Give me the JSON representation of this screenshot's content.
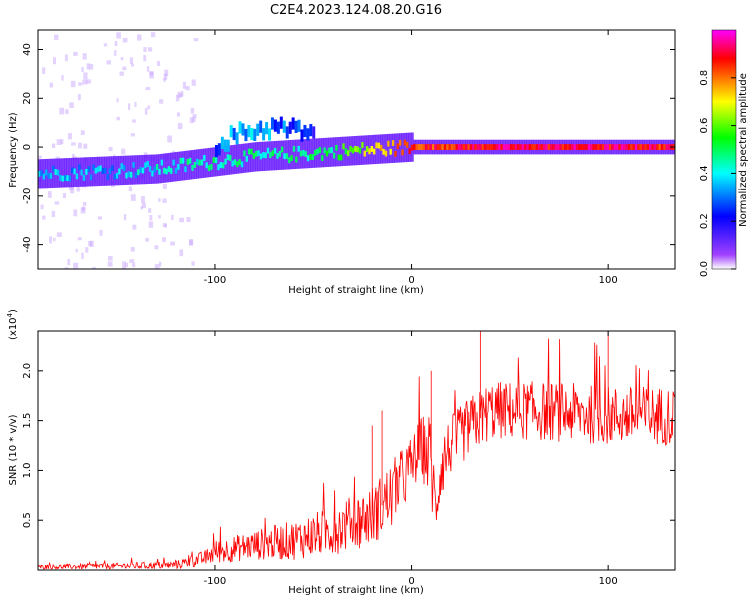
{
  "title": "C2E4.2023.124.08.20.G16",
  "chart_data": [
    {
      "type": "heatmap",
      "xlabel": "Height of straight line (km)",
      "ylabel": "Frequency (Hz)",
      "xlim": [
        -190,
        134
      ],
      "ylim": [
        -50,
        48
      ],
      "x_ticks": [
        -100,
        0,
        100
      ],
      "x_tick_labels": [
        "-100",
        "0",
        "100"
      ],
      "y_ticks": [
        -40,
        -20,
        0,
        20,
        40
      ],
      "y_tick_labels": [
        "-40",
        "-20",
        "0",
        "20",
        "40"
      ],
      "colorbar": {
        "label": "Normalized spectral amplitude",
        "range": [
          0,
          1
        ],
        "ticks": [
          0.0,
          0.2,
          0.4,
          0.6,
          0.8
        ],
        "tick_labels": [
          "0.0",
          "0.2",
          "0.4",
          "0.6",
          "0.8"
        ],
        "colormap": [
          "#ff00ff",
          "#ff0000",
          "#ffff00",
          "#00ff00",
          "#00ffff",
          "#0000ff",
          "#8000ff",
          "#ffffff"
        ]
      },
      "ridge": {
        "x": [
          -190,
          -160,
          -130,
          -100,
          -80,
          -60,
          -40,
          -20,
          0,
          40,
          80,
          120,
          134
        ],
        "y": [
          -11,
          -10,
          -9,
          -6,
          -4,
          -3,
          -2,
          -1,
          0,
          0,
          0,
          0,
          0
        ],
        "amplitude": [
          0.35,
          0.35,
          0.4,
          0.45,
          0.45,
          0.45,
          0.5,
          0.7,
          0.85,
          0.9,
          0.9,
          0.9,
          0.85
        ]
      },
      "upper_branch": {
        "x": [
          -100,
          -90,
          -80,
          -70,
          -60,
          -50
        ],
        "y": [
          1,
          5,
          7,
          8,
          7,
          6
        ],
        "amplitude": [
          0.3,
          0.35,
          0.35,
          0.3,
          0.25,
          0.2
        ]
      }
    },
    {
      "type": "line",
      "xlabel": "Height of straight line (km)",
      "ylabel": "SNR (10 * v/v)",
      "scale_label": "(x10",
      "scale_exponent": "4",
      "color": "#ff0000",
      "xlim": [
        -190,
        134
      ],
      "ylim": [
        0,
        2.4
      ],
      "x_ticks": [
        -100,
        0,
        100
      ],
      "x_tick_labels": [
        "-100",
        "0",
        "100"
      ],
      "y_ticks": [
        0.5,
        1.0,
        1.5,
        2.0
      ],
      "y_tick_labels": [
        "0.5",
        "1.0",
        "1.5",
        "2.0"
      ],
      "envelope": {
        "x": [
          -190,
          -150,
          -120,
          -105,
          -100,
          -80,
          -60,
          -40,
          -20,
          -10,
          0,
          5,
          10,
          12,
          15,
          20,
          30,
          40,
          60,
          80,
          100,
          120,
          134
        ],
        "mean": [
          0.03,
          0.04,
          0.05,
          0.12,
          0.18,
          0.25,
          0.3,
          0.4,
          0.55,
          0.75,
          1.05,
          1.25,
          1.1,
          0.6,
          1.05,
          1.25,
          1.45,
          1.6,
          1.6,
          1.58,
          1.55,
          1.55,
          1.55
        ],
        "spread": [
          0.02,
          0.03,
          0.04,
          0.08,
          0.12,
          0.15,
          0.2,
          0.25,
          0.3,
          0.35,
          0.3,
          0.3,
          0.5,
          0.35,
          0.35,
          0.3,
          0.3,
          0.3,
          0.3,
          0.3,
          0.3,
          0.3,
          0.3
        ]
      },
      "peaks": [
        {
          "x": 10,
          "y": 2.0
        },
        {
          "x": 35,
          "y": 2.4
        },
        {
          "x": 100,
          "y": 2.4
        },
        {
          "x": -20,
          "y": 1.45
        },
        {
          "x": -15,
          "y": 1.6
        }
      ]
    }
  ]
}
